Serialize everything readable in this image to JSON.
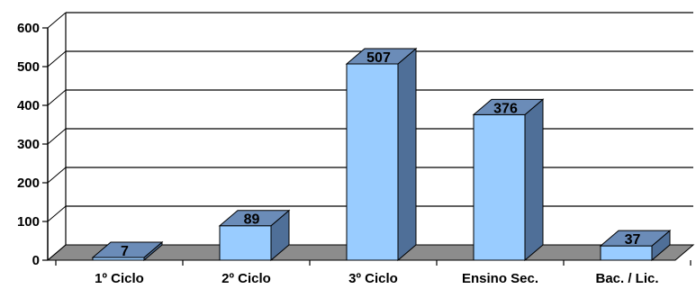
{
  "chart_data": {
    "type": "bar",
    "style": "3d",
    "title": "",
    "xlabel": "",
    "ylabel": "",
    "ylim": [
      0,
      600
    ],
    "yticks": [
      0,
      100,
      200,
      300,
      400,
      500,
      600
    ],
    "grid": true,
    "legend": "none",
    "categories": [
      "1º Ciclo",
      "2º Ciclo",
      "3º Ciclo",
      "Ensino Sec.",
      "Bac. / Lic."
    ],
    "values": [
      7,
      89,
      507,
      376,
      37
    ],
    "colors": {
      "bar_front": "#99ccff",
      "bar_top": "#6b8cb8",
      "bar_side": "#4f6f98",
      "floor": "#8c8c8c",
      "grid": "#000000"
    }
  }
}
